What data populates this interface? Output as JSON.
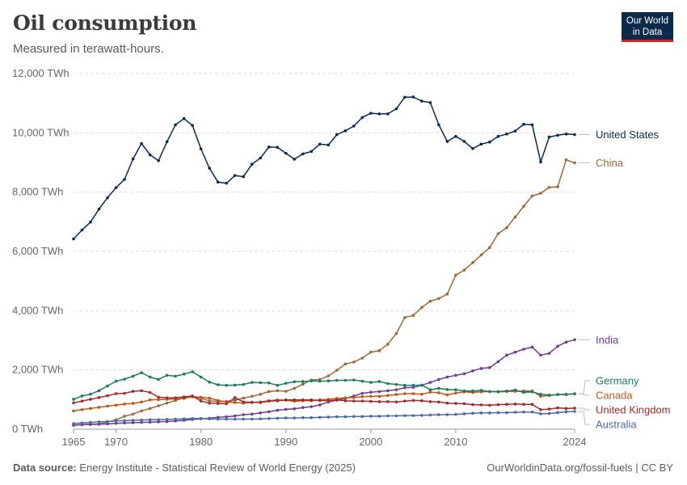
{
  "header": {
    "title": "Oil consumption",
    "subtitle": "Measured in terawatt-hours."
  },
  "logo": {
    "line1": "Our World",
    "line2": "in Data"
  },
  "footer": {
    "source_label": "Data source:",
    "source_text": "Energy Institute - Statistical Review of World Energy (2025)",
    "url": "OurWorldinData.org/fossil-fuels | CC BY"
  },
  "colors": {
    "United States": "#0a2a52",
    "China": "#9a6b3a",
    "India": "#6d3e91",
    "Canada": "#c05917",
    "Germany": "#1f7a63",
    "United Kingdom": "#a32a2a",
    "Australia": "#4c6aa5",
    "grid": "#dddddd",
    "axis": "#999999"
  },
  "chart_data": {
    "type": "line",
    "title": "Oil consumption",
    "subtitle": "Measured in terawatt-hours.",
    "xlabel": "",
    "ylabel": "",
    "xlim": [
      1965,
      2024
    ],
    "ylim": [
      0,
      12000
    ],
    "x_ticks": [
      1965,
      1970,
      1980,
      1990,
      2000,
      2010,
      2024
    ],
    "y_ticks": [
      0,
      2000,
      4000,
      6000,
      8000,
      10000,
      12000
    ],
    "y_tick_labels": [
      "0 TWh",
      "2,000 TWh",
      "4,000 TWh",
      "6,000 TWh",
      "8,000 TWh",
      "10,000 TWh",
      "12,000 TWh"
    ],
    "grid": "horizontal dashed",
    "legend": "end-of-line labels on the right",
    "series": [
      {
        "name": "United States",
        "x": [
          1965,
          1966,
          1967,
          1968,
          1969,
          1970,
          1971,
          1972,
          1973,
          1974,
          1975,
          1976,
          1977,
          1978,
          1979,
          1980,
          1981,
          1982,
          1983,
          1984,
          1985,
          1986,
          1987,
          1988,
          1989,
          1990,
          1991,
          1992,
          1993,
          1994,
          1995,
          1996,
          1997,
          1998,
          1999,
          2000,
          2001,
          2002,
          2003,
          2004,
          2005,
          2006,
          2007,
          2008,
          2009,
          2010,
          2011,
          2012,
          2013,
          2014,
          2015,
          2016,
          2017,
          2018,
          2019,
          2020,
          2021,
          2022,
          2023,
          2024
        ],
        "values": [
          6420,
          6720,
          6990,
          7430,
          7810,
          8150,
          8430,
          9120,
          9640,
          9260,
          9060,
          9700,
          10270,
          10480,
          10250,
          9460,
          8810,
          8340,
          8300,
          8560,
          8520,
          8940,
          9150,
          9520,
          9510,
          9310,
          9110,
          9290,
          9370,
          9620,
          9590,
          9940,
          10070,
          10230,
          10520,
          10660,
          10640,
          10640,
          10810,
          11200,
          11210,
          11070,
          11020,
          10270,
          9710,
          9880,
          9710,
          9470,
          9620,
          9690,
          9880,
          9960,
          10060,
          10290,
          10270,
          9020,
          9860,
          9920,
          9960,
          9940
        ]
      },
      {
        "name": "China",
        "x": [
          1965,
          1966,
          1967,
          1968,
          1969,
          1970,
          1971,
          1972,
          1973,
          1974,
          1975,
          1976,
          1977,
          1978,
          1979,
          1980,
          1981,
          1982,
          1983,
          1984,
          1985,
          1986,
          1987,
          1988,
          1989,
          1990,
          1991,
          1992,
          1993,
          1994,
          1995,
          1996,
          1997,
          1998,
          1999,
          2000,
          2001,
          2002,
          2003,
          2004,
          2005,
          2006,
          2007,
          2008,
          2009,
          2010,
          2011,
          2012,
          2013,
          2014,
          2015,
          2016,
          2017,
          2018,
          2019,
          2020,
          2021,
          2022,
          2023,
          2024
        ],
        "values": [
          130,
          160,
          170,
          180,
          240,
          320,
          440,
          510,
          620,
          700,
          790,
          880,
          970,
          1060,
          1090,
          1040,
          960,
          930,
          940,
          980,
          1050,
          1110,
          1180,
          1270,
          1300,
          1280,
          1380,
          1520,
          1660,
          1680,
          1800,
          1990,
          2200,
          2270,
          2400,
          2600,
          2650,
          2870,
          3230,
          3770,
          3840,
          4110,
          4320,
          4410,
          4560,
          5200,
          5370,
          5620,
          5880,
          6130,
          6600,
          6800,
          7160,
          7520,
          7870,
          7960,
          8160,
          8180,
          9090,
          8990
        ]
      },
      {
        "name": "India",
        "x": [
          1965,
          1966,
          1967,
          1968,
          1969,
          1970,
          1971,
          1972,
          1973,
          1974,
          1975,
          1976,
          1977,
          1978,
          1979,
          1980,
          1981,
          1982,
          1983,
          1984,
          1985,
          1986,
          1987,
          1988,
          1989,
          1990,
          1991,
          1992,
          1993,
          1994,
          1995,
          1996,
          1997,
          1998,
          1999,
          2000,
          2001,
          2002,
          2003,
          2004,
          2005,
          2006,
          2007,
          2008,
          2009,
          2010,
          2011,
          2012,
          2013,
          2014,
          2015,
          2016,
          2017,
          2018,
          2019,
          2020,
          2021,
          2022,
          2023,
          2024
        ],
        "values": [
          140,
          150,
          160,
          170,
          180,
          200,
          210,
          220,
          230,
          240,
          250,
          260,
          280,
          300,
          330,
          350,
          370,
          400,
          420,
          450,
          490,
          510,
          550,
          590,
          640,
          670,
          690,
          730,
          760,
          820,
          920,
          980,
          1040,
          1120,
          1210,
          1250,
          1270,
          1300,
          1330,
          1400,
          1410,
          1480,
          1580,
          1680,
          1760,
          1820,
          1870,
          1970,
          2050,
          2080,
          2280,
          2500,
          2600,
          2700,
          2770,
          2500,
          2560,
          2800,
          2940,
          3020
        ]
      },
      {
        "name": "Canada",
        "x": [
          1965,
          1966,
          1967,
          1968,
          1969,
          1970,
          1971,
          1972,
          1973,
          1974,
          1975,
          1976,
          1977,
          1978,
          1979,
          1980,
          1981,
          1982,
          1983,
          1984,
          1985,
          1986,
          1987,
          1988,
          1989,
          1990,
          1991,
          1992,
          1993,
          1994,
          1995,
          1996,
          1997,
          1998,
          1999,
          2000,
          2001,
          2002,
          2003,
          2004,
          2005,
          2006,
          2007,
          2008,
          2009,
          2010,
          2011,
          2012,
          2013,
          2014,
          2015,
          2016,
          2017,
          2018,
          2019,
          2020,
          2021,
          2022,
          2023,
          2024
        ],
        "values": [
          620,
          660,
          700,
          740,
          780,
          810,
          850,
          870,
          920,
          990,
          1000,
          1010,
          1020,
          1040,
          1100,
          1080,
          1050,
          970,
          920,
          900,
          880,
          900,
          920,
          960,
          990,
          980,
          940,
          960,
          960,
          990,
          1010,
          1040,
          1060,
          1070,
          1100,
          1110,
          1110,
          1140,
          1170,
          1200,
          1200,
          1180,
          1250,
          1230,
          1160,
          1220,
          1260,
          1240,
          1260,
          1270,
          1260,
          1270,
          1280,
          1290,
          1290,
          1110,
          1140,
          1170,
          1180,
          1190
        ]
      },
      {
        "name": "Germany",
        "x": [
          1965,
          1966,
          1967,
          1968,
          1969,
          1970,
          1971,
          1972,
          1973,
          1974,
          1975,
          1976,
          1977,
          1978,
          1979,
          1980,
          1981,
          1982,
          1983,
          1984,
          1985,
          1986,
          1987,
          1988,
          1989,
          1990,
          1991,
          1992,
          1993,
          1994,
          1995,
          1996,
          1997,
          1998,
          1999,
          2000,
          2001,
          2002,
          2003,
          2004,
          2005,
          2006,
          2007,
          2008,
          2009,
          2010,
          2011,
          2012,
          2013,
          2014,
          2015,
          2016,
          2017,
          2018,
          2019,
          2020,
          2021,
          2022,
          2023,
          2024
        ],
        "values": [
          1010,
          1120,
          1180,
          1300,
          1460,
          1620,
          1690,
          1790,
          1910,
          1760,
          1680,
          1820,
          1790,
          1860,
          1940,
          1760,
          1590,
          1500,
          1480,
          1490,
          1510,
          1580,
          1570,
          1560,
          1480,
          1550,
          1600,
          1610,
          1630,
          1620,
          1630,
          1650,
          1650,
          1660,
          1620,
          1580,
          1610,
          1540,
          1510,
          1480,
          1480,
          1490,
          1330,
          1380,
          1340,
          1330,
          1290,
          1290,
          1310,
          1270,
          1270,
          1290,
          1320,
          1240,
          1260,
          1180,
          1150,
          1170,
          1170,
          1200
        ]
      },
      {
        "name": "United Kingdom",
        "x": [
          1965,
          1966,
          1967,
          1968,
          1969,
          1970,
          1971,
          1972,
          1973,
          1974,
          1975,
          1976,
          1977,
          1978,
          1979,
          1980,
          1981,
          1982,
          1983,
          1984,
          1985,
          1986,
          1987,
          1988,
          1989,
          1990,
          1991,
          1992,
          1993,
          1994,
          1995,
          1996,
          1997,
          1998,
          1999,
          2000,
          2001,
          2002,
          2003,
          2004,
          2005,
          2006,
          2007,
          2008,
          2009,
          2010,
          2011,
          2012,
          2013,
          2014,
          2015,
          2016,
          2017,
          2018,
          2019,
          2020,
          2021,
          2022,
          2023,
          2024
        ],
        "values": [
          890,
          950,
          1010,
          1070,
          1130,
          1200,
          1210,
          1280,
          1300,
          1240,
          1080,
          1060,
          1060,
          1090,
          1120,
          950,
          880,
          870,
          860,
          1070,
          920,
          910,
          900,
          950,
          960,
          990,
          990,
          990,
          990,
          970,
          960,
          990,
          960,
          950,
          950,
          940,
          930,
          930,
          920,
          950,
          970,
          960,
          930,
          920,
          880,
          870,
          860,
          830,
          820,
          810,
          830,
          840,
          850,
          840,
          840,
          660,
          680,
          720,
          700,
          710
        ]
      },
      {
        "name": "Australia",
        "x": [
          1965,
          1966,
          1967,
          1968,
          1969,
          1970,
          1971,
          1972,
          1973,
          1974,
          1975,
          1976,
          1977,
          1978,
          1979,
          1980,
          1981,
          1982,
          1983,
          1984,
          1985,
          1986,
          1987,
          1988,
          1989,
          1990,
          1991,
          1992,
          1993,
          1994,
          1995,
          1996,
          1997,
          1998,
          1999,
          2000,
          2001,
          2002,
          2003,
          2004,
          2005,
          2006,
          2007,
          2008,
          2009,
          2010,
          2011,
          2012,
          2013,
          2014,
          2015,
          2016,
          2017,
          2018,
          2019,
          2020,
          2021,
          2022,
          2023,
          2024
        ],
        "values": [
          190,
          210,
          230,
          250,
          260,
          280,
          290,
          300,
          310,
          320,
          320,
          330,
          340,
          350,
          360,
          360,
          350,
          340,
          340,
          340,
          340,
          340,
          350,
          360,
          370,
          380,
          380,
          390,
          390,
          400,
          410,
          420,
          420,
          430,
          430,
          440,
          440,
          450,
          450,
          460,
          460,
          470,
          480,
          490,
          490,
          500,
          520,
          540,
          550,
          550,
          560,
          560,
          570,
          580,
          580,
          520,
          530,
          560,
          590,
          600
        ]
      }
    ],
    "end_labels": [
      {
        "name": "United States",
        "text": "United States"
      },
      {
        "name": "China",
        "text": "China"
      },
      {
        "name": "India",
        "text": "India"
      },
      {
        "name": "Canada",
        "text": "Canada"
      },
      {
        "name": "Germany",
        "text": "Germany"
      },
      {
        "name": "United Kingdom",
        "text": "United Kingdom"
      },
      {
        "name": "Australia",
        "text": "Australia"
      }
    ]
  }
}
